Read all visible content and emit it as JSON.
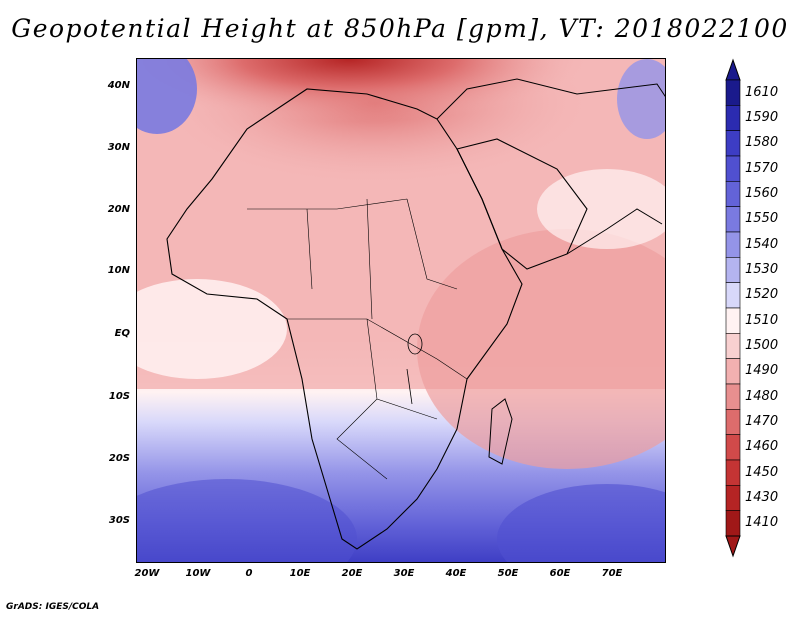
{
  "title": "Geopotential Height at 850hPa [gpm], VT: 2018022100",
  "map": {
    "lat_labels": [
      "40N",
      "30N",
      "20N",
      "10N",
      "EQ",
      "10S",
      "20S",
      "30S"
    ],
    "lon_labels": [
      "20W",
      "10W",
      "0",
      "10E",
      "20E",
      "30E",
      "40E",
      "50E",
      "60E",
      "70E"
    ]
  },
  "colorbar": {
    "levels": [
      "1610",
      "1590",
      "1580",
      "1570",
      "1560",
      "1550",
      "1540",
      "1530",
      "1520",
      "1510",
      "1500",
      "1490",
      "1480",
      "1470",
      "1460",
      "1450",
      "1430",
      "1410"
    ],
    "colors": [
      "#1a1a8c",
      "#2b2bb0",
      "#3d3dc4",
      "#5050d0",
      "#6363d8",
      "#7a7ae0",
      "#9494e8",
      "#b4b4f0",
      "#d8d8fa",
      "#fff2f2",
      "#f8d0d0",
      "#f2b0b0",
      "#e88f8f",
      "#dd6c6c",
      "#d14a4a",
      "#c43434",
      "#b52424",
      "#a01818"
    ]
  },
  "credit": "GrADS: IGES/COLA"
}
